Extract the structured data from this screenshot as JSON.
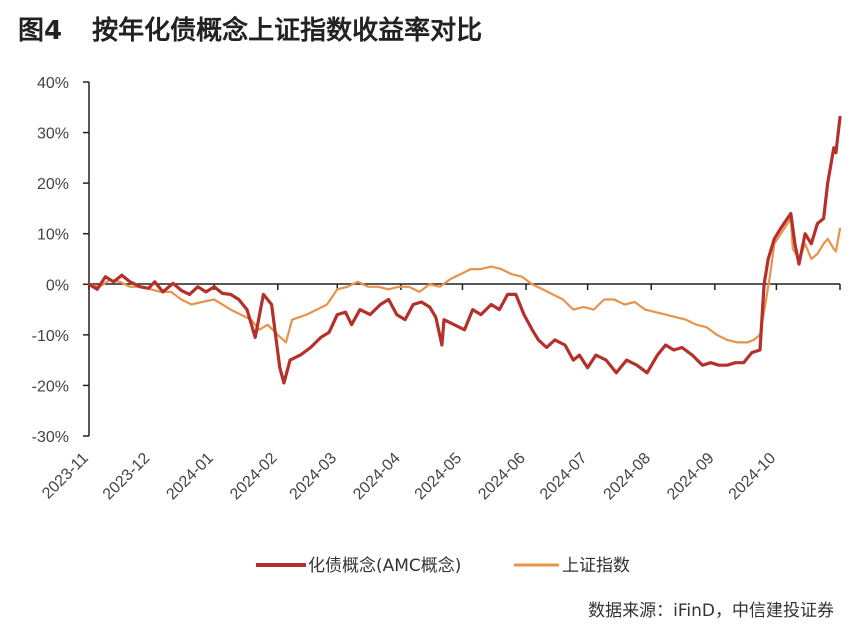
{
  "figure": {
    "number": "图4",
    "title": "按年化债概念上证指数收益率对比",
    "source": "数据来源：iFinD，中信建投证券"
  },
  "colors": {
    "series_amc": "#b5302a",
    "series_sse": "#e8934a",
    "axis": "#222222"
  },
  "chart_data": {
    "type": "line",
    "yticks": [
      "40%",
      "30%",
      "20%",
      "10%",
      "0%",
      "-10%",
      "-20%",
      "-30%"
    ],
    "ylim": [
      -30,
      40
    ],
    "xlim": [
      "2023-11-01",
      "2024-11-01"
    ],
    "xticks": [
      "2023-11",
      "2023-12",
      "2024-01",
      "2024-02",
      "2024-03",
      "2024-04",
      "2024-05",
      "2024-06",
      "2024-07",
      "2024-08",
      "2024-09",
      "2024-10"
    ],
    "grid": false,
    "legend": "bottom",
    "series": [
      {
        "name": "化债概念(AMC概念)",
        "color": "#b5302a",
        "points": [
          [
            "2023-11-01",
            0
          ],
          [
            "2023-11-05",
            -1
          ],
          [
            "2023-11-09",
            1.5
          ],
          [
            "2023-11-13",
            0.5
          ],
          [
            "2023-11-17",
            1.8
          ],
          [
            "2023-11-21",
            0.5
          ],
          [
            "2023-11-26",
            -0.5
          ],
          [
            "2023-11-30",
            -0.8
          ],
          [
            "2023-12-03",
            0.5
          ],
          [
            "2023-12-07",
            -1.5
          ],
          [
            "2023-12-12",
            0.2
          ],
          [
            "2023-12-16",
            -1.2
          ],
          [
            "2023-12-20",
            -2
          ],
          [
            "2023-12-24",
            -0.5
          ],
          [
            "2023-12-28",
            -1.5
          ],
          [
            "2024-01-01",
            -0.5
          ],
          [
            "2024-01-05",
            -1.8
          ],
          [
            "2024-01-09",
            -2
          ],
          [
            "2024-01-13",
            -3
          ],
          [
            "2024-01-17",
            -5
          ],
          [
            "2024-01-21",
            -10.5
          ],
          [
            "2024-01-25",
            -2
          ],
          [
            "2024-01-29",
            -4
          ],
          [
            "2024-02-02",
            -16.5
          ],
          [
            "2024-02-04",
            -19.5
          ],
          [
            "2024-02-07",
            -15
          ],
          [
            "2024-02-12",
            -14
          ],
          [
            "2024-02-17",
            -12.5
          ],
          [
            "2024-02-22",
            -10.5
          ],
          [
            "2024-02-26",
            -9.5
          ],
          [
            "2024-03-01",
            -6
          ],
          [
            "2024-03-05",
            -5.5
          ],
          [
            "2024-03-08",
            -8
          ],
          [
            "2024-03-12",
            -5
          ],
          [
            "2024-03-17",
            -6
          ],
          [
            "2024-03-22",
            -4
          ],
          [
            "2024-03-26",
            -3
          ],
          [
            "2024-03-30",
            -6
          ],
          [
            "2024-04-03",
            -7
          ],
          [
            "2024-04-07",
            -4
          ],
          [
            "2024-04-11",
            -3.5
          ],
          [
            "2024-04-15",
            -4.5
          ],
          [
            "2024-04-18",
            -6.5
          ],
          [
            "2024-04-21",
            -12
          ],
          [
            "2024-04-22",
            -7
          ],
          [
            "2024-04-27",
            -8
          ],
          [
            "2024-05-02",
            -9
          ],
          [
            "2024-05-06",
            -5
          ],
          [
            "2024-05-10",
            -6
          ],
          [
            "2024-05-15",
            -4
          ],
          [
            "2024-05-19",
            -5
          ],
          [
            "2024-05-23",
            -2
          ],
          [
            "2024-05-27",
            -2
          ],
          [
            "2024-05-31",
            -6
          ],
          [
            "2024-06-04",
            -9
          ],
          [
            "2024-06-07",
            -11
          ],
          [
            "2024-06-11",
            -12.5
          ],
          [
            "2024-06-15",
            -11
          ],
          [
            "2024-06-20",
            -12
          ],
          [
            "2024-06-24",
            -15
          ],
          [
            "2024-06-27",
            -14
          ],
          [
            "2024-07-01",
            -16.5
          ],
          [
            "2024-07-05",
            -14
          ],
          [
            "2024-07-10",
            -15
          ],
          [
            "2024-07-15",
            -17.5
          ],
          [
            "2024-07-20",
            -15
          ],
          [
            "2024-07-25",
            -16
          ],
          [
            "2024-07-30",
            -17.5
          ],
          [
            "2024-08-04",
            -14
          ],
          [
            "2024-08-08",
            -12
          ],
          [
            "2024-08-12",
            -13
          ],
          [
            "2024-08-16",
            -12.5
          ],
          [
            "2024-08-21",
            -14
          ],
          [
            "2024-08-26",
            -16
          ],
          [
            "2024-08-30",
            -15.5
          ],
          [
            "2024-09-03",
            -16
          ],
          [
            "2024-09-07",
            -16
          ],
          [
            "2024-09-11",
            -15.5
          ],
          [
            "2024-09-15",
            -15.5
          ],
          [
            "2024-09-19",
            -13.5
          ],
          [
            "2024-09-23",
            -13
          ],
          [
            "2024-09-25",
            0
          ],
          [
            "2024-09-27",
            5
          ],
          [
            "2024-09-30",
            9
          ],
          [
            "2024-10-03",
            11
          ],
          [
            "2024-10-08",
            14
          ],
          [
            "2024-10-10",
            8
          ],
          [
            "2024-10-12",
            4
          ],
          [
            "2024-10-15",
            10
          ],
          [
            "2024-10-18",
            8
          ],
          [
            "2024-10-21",
            12
          ],
          [
            "2024-10-24",
            13
          ],
          [
            "2024-10-26",
            20
          ],
          [
            "2024-10-29",
            27
          ],
          [
            "2024-10-30",
            26
          ],
          [
            "2024-11-01",
            33
          ]
        ]
      },
      {
        "name": "上证指数",
        "color": "#e8934a",
        "points": [
          [
            "2023-11-01",
            0
          ],
          [
            "2023-11-06",
            -0.5
          ],
          [
            "2023-11-11",
            0.8
          ],
          [
            "2023-11-16",
            0.5
          ],
          [
            "2023-11-21",
            -0.5
          ],
          [
            "2023-11-26",
            -0.5
          ],
          [
            "2023-12-01",
            -1
          ],
          [
            "2023-12-06",
            -1.5
          ],
          [
            "2023-12-11",
            -1.5
          ],
          [
            "2023-12-16",
            -3
          ],
          [
            "2023-12-21",
            -4
          ],
          [
            "2023-12-26",
            -3.5
          ],
          [
            "2024-01-01",
            -3
          ],
          [
            "2024-01-05",
            -4
          ],
          [
            "2024-01-09",
            -5
          ],
          [
            "2024-01-14",
            -6
          ],
          [
            "2024-01-19",
            -7
          ],
          [
            "2024-01-23",
            -9
          ],
          [
            "2024-01-27",
            -8
          ],
          [
            "2024-02-01",
            -10
          ],
          [
            "2024-02-05",
            -11.5
          ],
          [
            "2024-02-08",
            -7
          ],
          [
            "2024-02-15",
            -6
          ],
          [
            "2024-02-20",
            -5
          ],
          [
            "2024-02-25",
            -4
          ],
          [
            "2024-03-01",
            -1
          ],
          [
            "2024-03-06",
            -0.5
          ],
          [
            "2024-03-11",
            0.5
          ],
          [
            "2024-03-16",
            -0.5
          ],
          [
            "2024-03-21",
            -0.5
          ],
          [
            "2024-03-26",
            -1
          ],
          [
            "2024-03-31",
            -0.5
          ],
          [
            "2024-04-05",
            -0.5
          ],
          [
            "2024-04-10",
            -1.5
          ],
          [
            "2024-04-15",
            0
          ],
          [
            "2024-04-20",
            -0.5
          ],
          [
            "2024-04-25",
            1
          ],
          [
            "2024-04-30",
            2
          ],
          [
            "2024-05-05",
            3
          ],
          [
            "2024-05-10",
            3
          ],
          [
            "2024-05-15",
            3.5
          ],
          [
            "2024-05-20",
            3
          ],
          [
            "2024-05-25",
            2
          ],
          [
            "2024-05-30",
            1.5
          ],
          [
            "2024-06-04",
            0
          ],
          [
            "2024-06-09",
            -1
          ],
          [
            "2024-06-14",
            -2
          ],
          [
            "2024-06-19",
            -3
          ],
          [
            "2024-06-24",
            -5
          ],
          [
            "2024-06-29",
            -4.5
          ],
          [
            "2024-07-04",
            -5
          ],
          [
            "2024-07-09",
            -3
          ],
          [
            "2024-07-14",
            -3
          ],
          [
            "2024-07-19",
            -4
          ],
          [
            "2024-07-24",
            -3.5
          ],
          [
            "2024-07-29",
            -5
          ],
          [
            "2024-08-03",
            -5.5
          ],
          [
            "2024-08-08",
            -6
          ],
          [
            "2024-08-13",
            -6.5
          ],
          [
            "2024-08-18",
            -7
          ],
          [
            "2024-08-23",
            -8
          ],
          [
            "2024-08-28",
            -8.5
          ],
          [
            "2024-09-02",
            -10
          ],
          [
            "2024-09-07",
            -11
          ],
          [
            "2024-09-12",
            -11.5
          ],
          [
            "2024-09-17",
            -11.5
          ],
          [
            "2024-09-20",
            -11
          ],
          [
            "2024-09-23",
            -10
          ],
          [
            "2024-09-26",
            -3
          ],
          [
            "2024-09-28",
            2
          ],
          [
            "2024-09-30",
            8
          ],
          [
            "2024-10-08",
            13
          ],
          [
            "2024-10-09",
            7
          ],
          [
            "2024-10-12",
            5
          ],
          [
            "2024-10-15",
            8
          ],
          [
            "2024-10-18",
            5
          ],
          [
            "2024-10-21",
            6
          ],
          [
            "2024-10-24",
            8
          ],
          [
            "2024-10-26",
            9
          ],
          [
            "2024-10-29",
            7
          ],
          [
            "2024-10-30",
            6.5
          ],
          [
            "2024-11-01",
            11
          ]
        ]
      }
    ]
  }
}
